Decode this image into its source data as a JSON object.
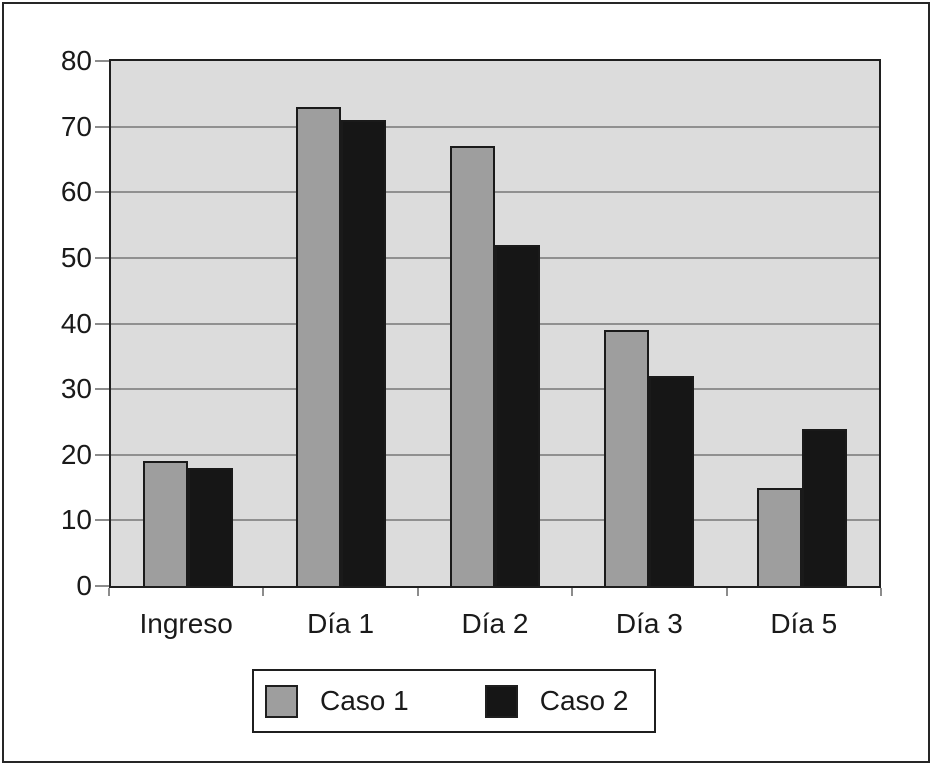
{
  "figure": {
    "background": "#ffffff",
    "frame_color": "#262626"
  },
  "chart_data": {
    "type": "bar",
    "title": "",
    "xlabel": "",
    "ylabel": "",
    "categories": [
      "Ingreso",
      "Día 1",
      "Día 2",
      "Día 3",
      "Día 5"
    ],
    "series": [
      {
        "name": "Caso 1",
        "color": "#9e9e9e",
        "values": [
          19,
          73,
          67,
          39,
          15
        ]
      },
      {
        "name": "Caso 2",
        "color": "#161616",
        "values": [
          18,
          71,
          52,
          32,
          24
        ]
      }
    ],
    "ylim": [
      0,
      80
    ],
    "yticks": [
      80,
      70,
      60,
      50,
      40,
      30,
      20,
      10,
      0
    ],
    "grid": true,
    "gridline_color": "#909090",
    "plot_background": "#dcdcdc",
    "bar_outline_color": "#1a1a1a",
    "legend_position": "bottom"
  }
}
